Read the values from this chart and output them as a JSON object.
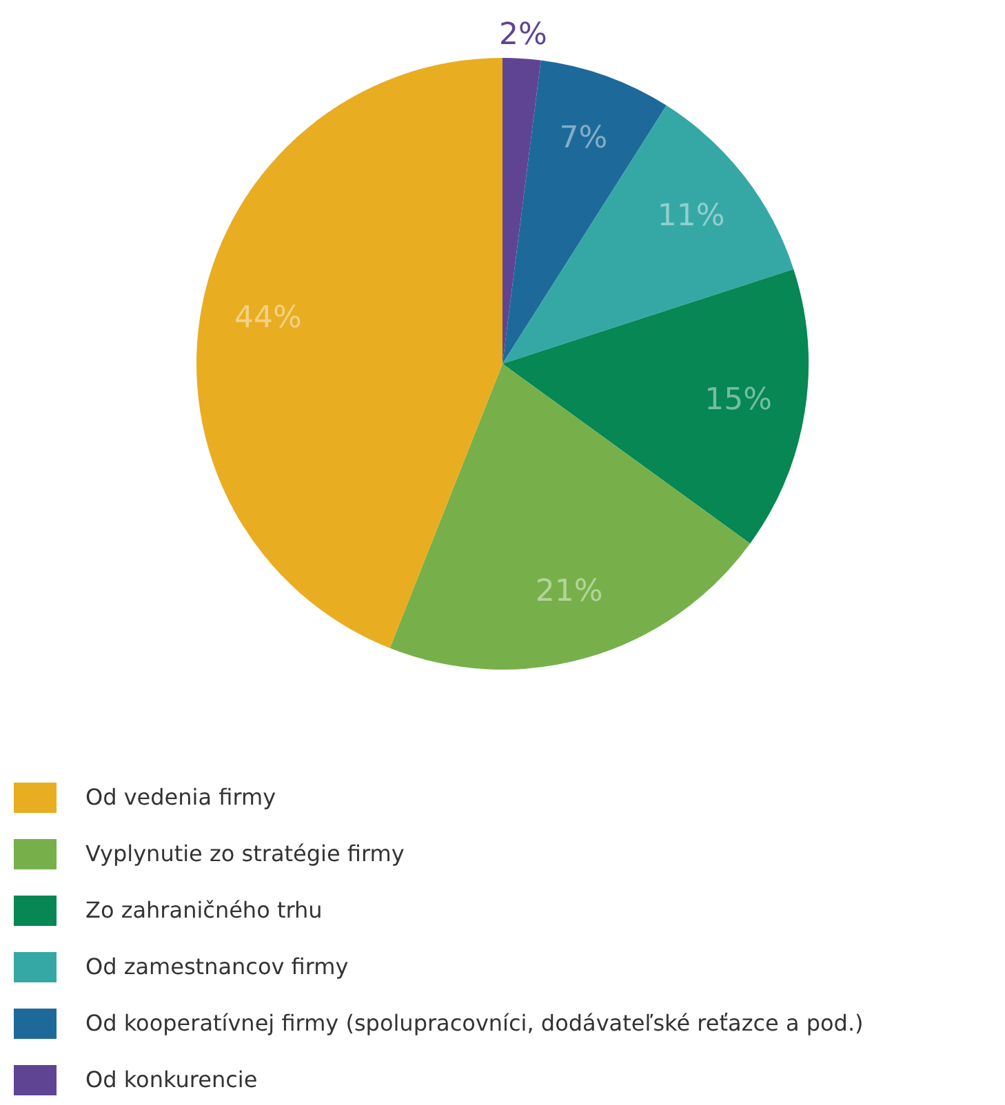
{
  "chart_data": {
    "type": "pie",
    "categories": [
      "Od vedenia firmy",
      "Vyplynutie zo stratégie firmy",
      "Zo zahraničného trhu",
      "Od zamestnancov firmy",
      "Od kooperatívnej firmy (spolupracovníci, dodávateľské reťazce a pod.)",
      "Od konkurencie"
    ],
    "values": [
      44,
      21,
      15,
      11,
      7,
      2
    ],
    "colors": [
      "#e9ad22",
      "#77b04a",
      "#068753",
      "#35a8a5",
      "#1d6a9a",
      "#5f4494"
    ],
    "value_labels": [
      "44%",
      "21%",
      "15%",
      "11%",
      "7%",
      "2%"
    ],
    "legend": "bottom"
  }
}
